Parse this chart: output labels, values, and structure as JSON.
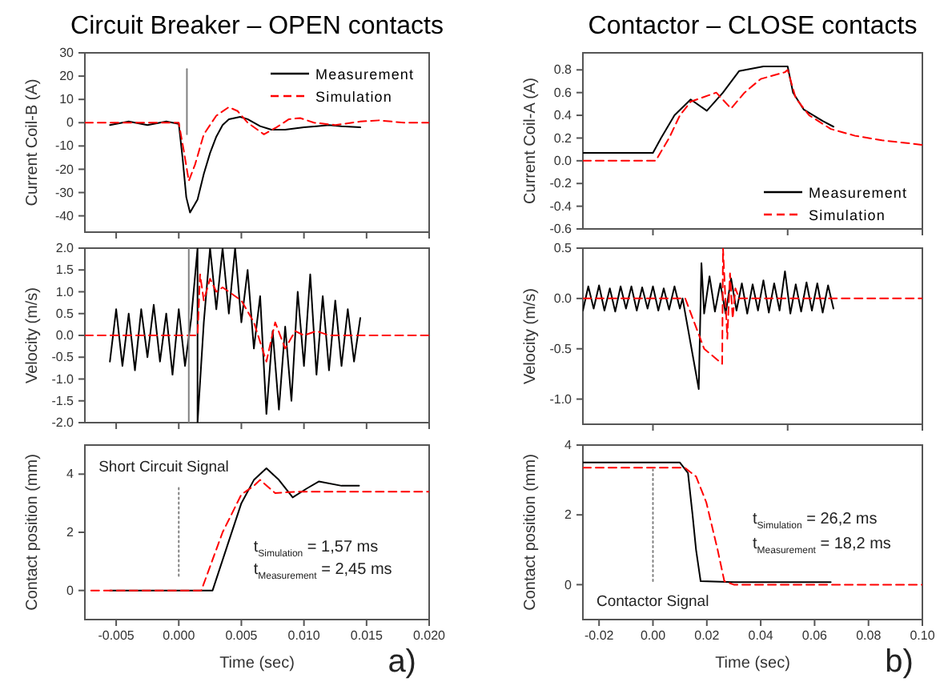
{
  "chart_data": [
    {
      "type": "line",
      "title": "Circuit Breaker – OPEN contacts",
      "ylabel": "Current Coil-B (A)",
      "xlim": [
        -0.0075,
        0.02
      ],
      "ylim": [
        -47,
        30
      ],
      "xticks": [
        {
          "value": -0.005,
          "label": null
        },
        {
          "value": 0,
          "label": null
        },
        {
          "value": 0.005,
          "label": null
        },
        {
          "value": 0.01,
          "label": null
        },
        {
          "value": 0.015,
          "label": null
        },
        {
          "value": 0.02,
          "label": null
        }
      ],
      "yticks": [
        -40,
        -30,
        -20,
        -10,
        0,
        10,
        20,
        30
      ],
      "tick_labels": "y",
      "legend": "top right",
      "series": [
        {
          "name": "Measurement",
          "color": "#000000",
          "line_style": "solid",
          "x": [
            -0.0055,
            -0.004,
            -0.0025,
            -0.001,
            0,
            0.0003,
            0.0006,
            0.0009,
            0.0015,
            0.002,
            0.0025,
            0.003,
            0.0035,
            0.004,
            0.0049,
            0.0055,
            0.0065,
            0.0074,
            0.0085,
            0.01,
            0.011,
            0.012,
            0.013,
            0.0145
          ],
          "values": [
            -1,
            0.5,
            -1,
            0.5,
            -0.5,
            -15,
            -32,
            -38.6,
            -33,
            -22,
            -13,
            -6,
            -1,
            1.5,
            2.5,
            1.5,
            -1.5,
            -3,
            -3,
            -2,
            -1.5,
            -1,
            -1.5,
            -2
          ]
        },
        {
          "name": "Simulation",
          "color": "#ff0000",
          "line_style": "dashed",
          "x": [
            -0.0075,
            0,
            0.0004,
            0.0008,
            0.0013,
            0.002,
            0.003,
            0.004,
            0.0047,
            0.0055,
            0.0068,
            0.0078,
            0.0088,
            0.0097,
            0.0108,
            0.0125,
            0.0145,
            0.016,
            0.018,
            0.02
          ],
          "values": [
            0,
            0,
            -12,
            -25,
            -18,
            -5,
            3,
            6.7,
            5,
            0,
            -5,
            -2,
            1.5,
            2,
            0,
            -1,
            0.5,
            1,
            0,
            0
          ]
        },
        {
          "color": "#808080",
          "line_style": "solid",
          "x": [
            0.00065,
            0.00065
          ],
          "values": [
            23,
            -5
          ]
        }
      ]
    },
    {
      "type": "line",
      "ylabel": "Velocity (m/s)",
      "xlim": [
        -0.0075,
        0.02
      ],
      "ylim": [
        -2,
        2
      ],
      "xticks": [
        {
          "value": -0.005,
          "label": null
        },
        {
          "value": 0,
          "label": null
        },
        {
          "value": 0.005,
          "label": null
        },
        {
          "value": 0.01,
          "label": null
        },
        {
          "value": 0.015,
          "label": null
        },
        {
          "value": 0.02,
          "label": null
        }
      ],
      "yticks": [
        {
          "value": -2,
          "label": "-2.0"
        },
        {
          "value": -1.5,
          "label": "-1.5"
        },
        {
          "value": -1,
          "label": "-1.0"
        },
        {
          "value": -0.5,
          "label": "-0.5"
        },
        {
          "value": 0,
          "label": "0.0"
        },
        {
          "value": 0.5,
          "label": "0.5"
        },
        {
          "value": 1,
          "label": "1.0"
        },
        {
          "value": 1.5,
          "label": "1.5"
        },
        {
          "value": 2,
          "label": "2.0"
        }
      ],
      "tick_labels": "y",
      "series": [
        {
          "color": "#000000",
          "line_style": "solid",
          "x": [
            -0.0055,
            -0.005,
            -0.0045,
            -0.004,
            -0.0035,
            -0.003,
            -0.0025,
            -0.002,
            -0.0015,
            -0.001,
            -0.0005,
            0,
            0.0005,
            0.001,
            0.0015,
            0.0015,
            0.002,
            0.0025,
            0.003,
            0.0035,
            0.004,
            0.0045,
            0.005,
            0.0055,
            0.006,
            0.0065,
            0.007,
            0.0075,
            0.008,
            0.0085,
            0.009,
            0.0095,
            0.01,
            0.0105,
            0.011,
            0.0115,
            0.012,
            0.0125,
            0.013,
            0.0135,
            0.014,
            0.0145
          ],
          "values": [
            -0.6,
            0.6,
            -0.7,
            0.5,
            -0.8,
            0.6,
            -0.5,
            0.7,
            -0.6,
            0.5,
            -0.9,
            0.6,
            -0.7,
            0.4,
            2,
            -2,
            0.3,
            2,
            0.6,
            2,
            0.5,
            2,
            0.3,
            1.5,
            -0.3,
            0.9,
            -1.8,
            0.1,
            -1.7,
            0.2,
            -1.5,
            1,
            -0.7,
            1.4,
            -0.9,
            0.9,
            -0.8,
            0.8,
            -0.7,
            0.6,
            -0.6,
            0.4
          ]
        },
        {
          "color": "#ff0000",
          "line_style": "dashed",
          "x": [
            -0.0075,
            0.0015,
            0.0017,
            0.002,
            0.0025,
            0.003,
            0.0035,
            0.005,
            0.006,
            0.007,
            0.0077,
            0.0085,
            0.0093,
            0.01,
            0.011,
            0.012,
            0.02
          ],
          "values": [
            0,
            0,
            1.4,
            0.8,
            1.3,
            1,
            1.1,
            0.8,
            0.3,
            -0.6,
            0.3,
            -0.3,
            0.1,
            0,
            0.1,
            0,
            0
          ]
        },
        {
          "color": "#808080",
          "line_style": "solid",
          "x": [
            0.0008,
            0.0008
          ],
          "values": [
            2,
            -2
          ]
        }
      ]
    },
    {
      "type": "line",
      "xlabel": "Time (sec)",
      "ylabel": "Contact position (mm)",
      "xlim": [
        -0.0075,
        0.02
      ],
      "ylim": [
        -1,
        5
      ],
      "xticks": [
        {
          "value": -0.005,
          "label": "-0.005"
        },
        {
          "value": 0,
          "label": "0.000"
        },
        {
          "value": 0.005,
          "label": "0.005"
        },
        {
          "value": 0.01,
          "label": "0.010"
        },
        {
          "value": 0.015,
          "label": "0.015"
        },
        {
          "value": 0.02,
          "label": "0.020"
        }
      ],
      "yticks": [
        0,
        2,
        4
      ],
      "annotations": [
        "Short Circuit Signal",
        "t$_{Simulation}$ = 1,57 ms",
        "t$_{Measurement}$ = 2,45 ms",
        "a)"
      ],
      "series": [
        {
          "color": "#000000",
          "line_style": "solid",
          "x": [
            -0.0055,
            0.0027,
            0.004,
            0.005,
            0.006,
            0.007,
            0.008,
            0.0091,
            0.0102,
            0.0112,
            0.013,
            0.0144
          ],
          "values": [
            0,
            0,
            1.7,
            3,
            3.8,
            4.2,
            3.8,
            3.2,
            3.5,
            3.75,
            3.6,
            3.6
          ]
        },
        {
          "color": "#ff0000",
          "line_style": "dashed",
          "x": [
            -0.007,
            0.0018,
            0.0035,
            0.005,
            0.006,
            0.0065,
            0.0077,
            0.0095,
            0.02
          ],
          "values": [
            0,
            0,
            2,
            3.3,
            3.6,
            3.8,
            3.35,
            3.4,
            3.4
          ]
        },
        {
          "color": "#808080",
          "line_style": "dotted",
          "x": [
            0,
            0
          ],
          "values": [
            0.5,
            3.6
          ]
        }
      ]
    },
    {
      "type": "line",
      "title": "Contactor – CLOSE contacts",
      "ylabel": "Current Coil-A (A)",
      "xlim": [
        -0.026,
        0.1
      ],
      "ylim": [
        -0.6,
        0.95
      ],
      "xticks": [
        {
          "value": 0,
          "label": null
        },
        {
          "value": 0.05,
          "label": null
        },
        {
          "value": 0.1,
          "label": null
        }
      ],
      "yticks": [
        {
          "value": -0.6,
          "label": "-0.6"
        },
        {
          "value": -0.4,
          "label": "-0.4"
        },
        {
          "value": -0.2,
          "label": "-0.2"
        },
        {
          "value": 0,
          "label": "0.0"
        },
        {
          "value": 0.2,
          "label": "0.2"
        },
        {
          "value": 0.4,
          "label": "0.4"
        },
        {
          "value": 0.6,
          "label": "0.6"
        },
        {
          "value": 0.8,
          "label": "0.8"
        }
      ],
      "tick_labels": "y",
      "legend": "bottom right",
      "series": [
        {
          "name": "Measurement",
          "color": "#000000",
          "line_style": "solid",
          "x": [
            -0.026,
            0,
            0.003,
            0.008,
            0.014,
            0.02,
            0.026,
            0.032,
            0.041,
            0.05,
            0.052,
            0.056,
            0.063,
            0.067
          ],
          "values": [
            0.07,
            0.07,
            0.2,
            0.4,
            0.54,
            0.44,
            0.6,
            0.79,
            0.83,
            0.83,
            0.6,
            0.45,
            0.35,
            0.3
          ]
        },
        {
          "name": "Simulation",
          "color": "#ff0000",
          "line_style": "dashed",
          "x": [
            -0.026,
            0.001,
            0.006,
            0.01,
            0.014,
            0.0235,
            0.029,
            0.034,
            0.04,
            0.049,
            0.05,
            0.053,
            0.058,
            0.066,
            0.075,
            0.085,
            0.1
          ],
          "values": [
            0,
            0,
            0.2,
            0.4,
            0.52,
            0.6,
            0.46,
            0.6,
            0.72,
            0.78,
            0.8,
            0.55,
            0.4,
            0.28,
            0.22,
            0.18,
            0.14
          ]
        }
      ]
    },
    {
      "type": "line",
      "ylabel": "Velocity (m/s)",
      "xlim": [
        -0.026,
        0.1
      ],
      "ylim": [
        -1.25,
        0.5
      ],
      "xticks": [
        {
          "value": 0,
          "label": null
        },
        {
          "value": 0.05,
          "label": null
        },
        {
          "value": 0.1,
          "label": null
        }
      ],
      "yticks": [
        {
          "value": -1,
          "label": "-1.0"
        },
        {
          "value": -0.5,
          "label": "-0.5"
        },
        {
          "value": 0,
          "label": "0.0"
        },
        {
          "value": 0.5,
          "label": "0.5"
        }
      ],
      "tick_labels": "y",
      "series": [
        {
          "color": "#000000",
          "line_style": "solid",
          "x": [
            -0.026,
            -0.024,
            -0.022,
            -0.02,
            -0.018,
            -0.016,
            -0.014,
            -0.012,
            -0.01,
            -0.008,
            -0.006,
            -0.004,
            -0.002,
            0,
            0.002,
            0.004,
            0.006,
            0.008,
            0.01,
            0.011,
            0.013,
            0.015,
            0.017,
            0.018,
            0.019,
            0.021,
            0.023,
            0.025,
            0.027,
            0.029,
            0.031,
            0.033,
            0.035,
            0.037,
            0.039,
            0.041,
            0.043,
            0.045,
            0.047,
            0.049,
            0.051,
            0.053,
            0.055,
            0.057,
            0.059,
            0.061,
            0.063,
            0.065,
            0.067
          ],
          "values": [
            -0.12,
            0.12,
            -0.1,
            0.13,
            -0.12,
            0.1,
            -0.13,
            0.12,
            -0.1,
            0.12,
            -0.12,
            0.11,
            -0.1,
            0.12,
            -0.12,
            0.1,
            -0.11,
            0.12,
            -0.1,
            0,
            -0.3,
            -0.6,
            -0.9,
            0.35,
            -0.15,
            0.22,
            -0.13,
            0.15,
            -0.15,
            0.2,
            -0.12,
            0.15,
            -0.15,
            0.14,
            -0.12,
            0.18,
            -0.14,
            0.15,
            -0.12,
            0.27,
            -0.15,
            0.14,
            -0.13,
            0.16,
            -0.12,
            0.15,
            -0.14,
            0.13,
            -0.1
          ]
        },
        {
          "color": "#ff0000",
          "line_style": "dashed",
          "x": [
            -0.026,
            0.012,
            0.019,
            0.0257,
            0.026,
            0.0276,
            0.0286,
            0.0296,
            0.0306,
            0.032,
            0.1
          ],
          "values": [
            0,
            0,
            -0.5,
            -0.65,
            0.5,
            -0.4,
            0.25,
            -0.2,
            0.1,
            0,
            0
          ]
        }
      ]
    },
    {
      "type": "line",
      "xlabel": "Time (sec)",
      "ylabel": "Contact position (mm)",
      "xlim": [
        -0.026,
        0.1
      ],
      "ylim": [
        -1,
        4
      ],
      "xticks": [
        {
          "value": -0.02,
          "label": "-0.02"
        },
        {
          "value": 0,
          "label": "0.00"
        },
        {
          "value": 0.02,
          "label": "0.02"
        },
        {
          "value": 0.04,
          "label": "0.04"
        },
        {
          "value": 0.06,
          "label": "0.06"
        },
        {
          "value": 0.08,
          "label": "0.08"
        },
        {
          "value": 0.1,
          "label": "0.10"
        }
      ],
      "yticks": [
        0,
        2,
        4
      ],
      "annotations": [
        "Contactor Signal",
        "t$_{Simulation}$ = 26,2 ms",
        "t$_{Measurement}$ = 18,2 ms",
        "b)"
      ],
      "series": [
        {
          "color": "#000000",
          "line_style": "solid",
          "x": [
            -0.026,
            0.01,
            0.013,
            0.0147,
            0.016,
            0.0177,
            0.03,
            0.066
          ],
          "values": [
            3.5,
            3.5,
            3.2,
            2,
            1,
            0.1,
            0.07,
            0.07
          ]
        },
        {
          "color": "#ff0000",
          "line_style": "dashed",
          "x": [
            -0.026,
            0.0118,
            0.016,
            0.0198,
            0.024,
            0.0265,
            0.03,
            0.1
          ],
          "values": [
            3.35,
            3.35,
            3.1,
            2.36,
            1,
            0.1,
            0,
            0
          ]
        },
        {
          "color": "#808080",
          "line_style": "dotted",
          "x": [
            0,
            0
          ],
          "values": [
            0.1,
            3.3
          ]
        }
      ]
    }
  ]
}
